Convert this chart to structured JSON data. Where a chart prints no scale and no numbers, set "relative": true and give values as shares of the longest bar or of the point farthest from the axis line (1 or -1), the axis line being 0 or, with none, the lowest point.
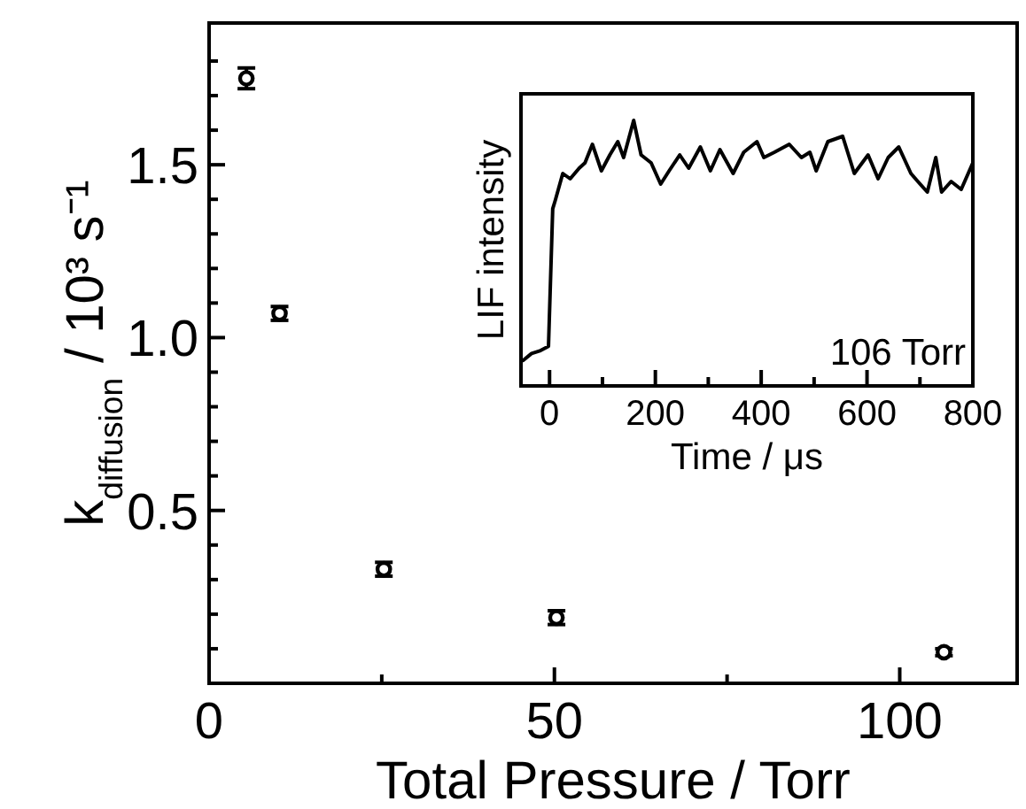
{
  "chart_data": [
    {
      "type": "scatter",
      "xlabel": "Total Pressure / Torr",
      "ylabel": "k$_{diffusion}$ / 10³ s⁻¹",
      "x": [
        5.4,
        10.2,
        25.3,
        50.3,
        106.4
      ],
      "series": [
        {
          "color": "#000000",
          "values": [
            1.75,
            1.07,
            0.33,
            0.19,
            0.09
          ],
          "errors": [
            0.03,
            0.02,
            0.02,
            0.02,
            0.01
          ]
        }
      ],
      "xlim": [
        0,
        117
      ],
      "ylim": [
        0,
        1.91
      ],
      "xticks": [
        0,
        {
          "value": 25,
          "label": null
        },
        50,
        {
          "value": 75,
          "label": null
        },
        100
      ],
      "yticks": [
        {
          "value": 0.1,
          "label": null
        },
        {
          "value": 0.2,
          "label": null
        },
        {
          "value": 0.3,
          "label": null
        },
        {
          "value": 0.4,
          "label": null
        },
        0.5,
        {
          "value": 0.6,
          "label": null
        },
        {
          "value": 0.7,
          "label": null
        },
        {
          "value": 0.8,
          "label": null
        },
        {
          "value": 0.9,
          "label": null
        },
        {
          "value": 1,
          "label": "1.0"
        },
        {
          "value": 1.1,
          "label": null
        },
        {
          "value": 1.2,
          "label": null
        },
        {
          "value": 1.3,
          "label": null
        },
        {
          "value": 1.4,
          "label": null
        },
        1.5,
        {
          "value": 1.6,
          "label": null
        },
        {
          "value": 1.7,
          "label": null
        },
        {
          "value": 1.8,
          "label": null
        }
      ],
      "marker": "circle",
      "grid": false
    },
    {
      "type": "line",
      "xlabel": "Time / μs",
      "ylabel": "LIF intensity",
      "relative": true,
      "tick_labels": "x",
      "annotations": [
        "106 Torr"
      ],
      "x": [
        -50,
        -34,
        -17,
        -2,
        6,
        11,
        25,
        39,
        56,
        67,
        81,
        98,
        114,
        129,
        140,
        159,
        173,
        192,
        210,
        226,
        246,
        263,
        285,
        304,
        322,
        347,
        367,
        392,
        405,
        425,
        453,
        476,
        492,
        504,
        526,
        554,
        576,
        602,
        621,
        640,
        660,
        683,
        696,
        714,
        730,
        741,
        759,
        778,
        800
      ],
      "series": [
        {
          "color": "#000000",
          "values": [
            0.096,
            0.122,
            0.133,
            0.149,
            0.667,
            0.7,
            0.8,
            0.78,
            0.82,
            0.84,
            0.91,
            0.81,
            0.87,
            0.92,
            0.86,
            1.0,
            0.87,
            0.84,
            0.76,
            0.81,
            0.87,
            0.82,
            0.9,
            0.81,
            0.89,
            0.8,
            0.88,
            0.92,
            0.86,
            0.88,
            0.91,
            0.86,
            0.88,
            0.81,
            0.92,
            0.94,
            0.8,
            0.87,
            0.78,
            0.86,
            0.9,
            0.8,
            0.77,
            0.73,
            0.86,
            0.73,
            0.77,
            0.74,
            0.84
          ]
        }
      ],
      "xlim": [
        -54,
        800
      ],
      "xticks": [
        0,
        {
          "value": 100,
          "label": null
        },
        200,
        {
          "value": 300,
          "label": null
        },
        400,
        {
          "value": 500,
          "label": null
        },
        600,
        {
          "value": 700,
          "label": null
        },
        800
      ],
      "marker": "none",
      "line_style": "solid",
      "grid": false
    }
  ]
}
